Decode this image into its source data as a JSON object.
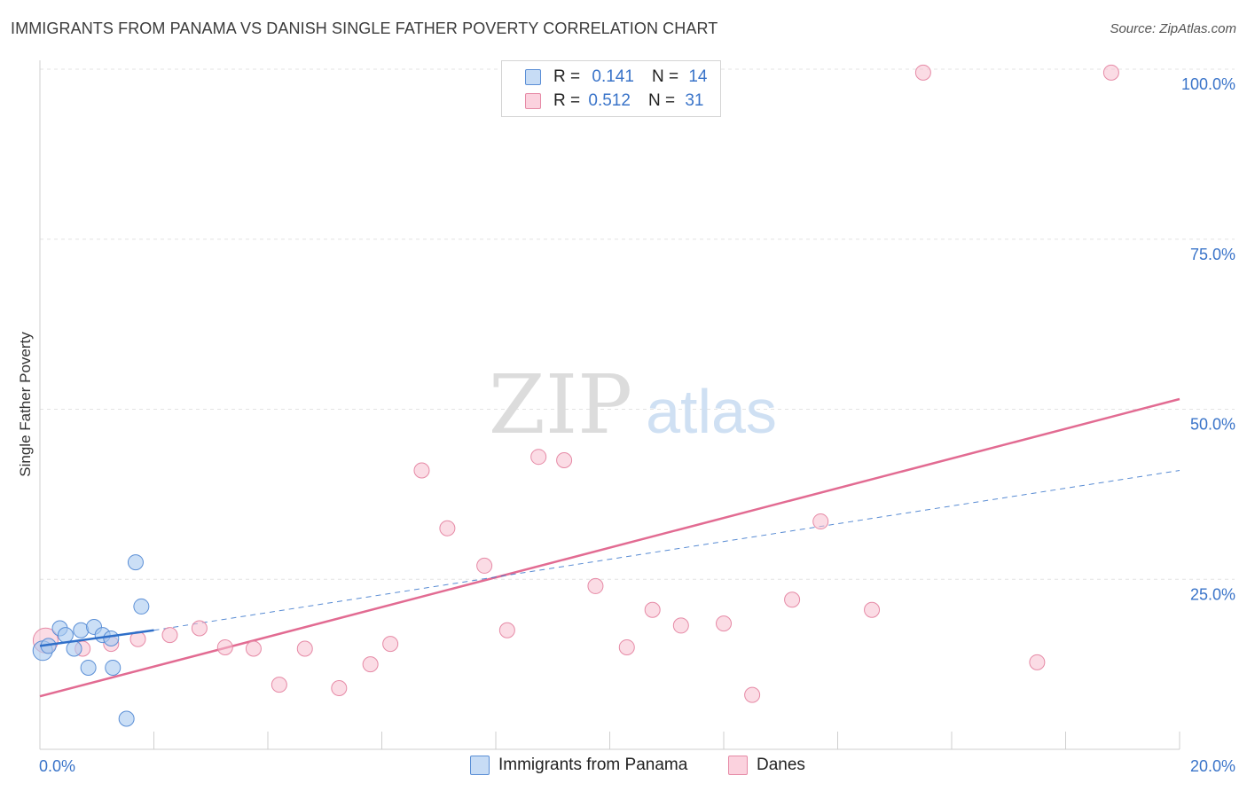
{
  "title": "IMMIGRANTS FROM PANAMA VS DANISH SINGLE FATHER POVERTY CORRELATION CHART",
  "source": "Source: ZipAtlas.com",
  "watermark": {
    "zip": "ZIP",
    "atlas": "atlas"
  },
  "legend": {
    "rows": [
      {
        "r_label": "R =",
        "r_value": "0.141",
        "n_label": "N =",
        "n_value": "14"
      },
      {
        "r_label": "R =",
        "r_value": "0.512",
        "n_label": "N =",
        "n_value": "31"
      }
    ]
  },
  "bottom_legend": {
    "series1": "Immigrants from Panama",
    "series2": "Danes"
  },
  "colors": {
    "blue_fill": "#a9c9f0",
    "blue_stroke": "#5b8fd6",
    "blue_line": "#2f6fc9",
    "pink_fill": "#f8c0d0",
    "pink_stroke": "#e68aa6",
    "pink_line": "#e26b92",
    "axis_label": "#3a74c9",
    "grid": "#e3e3e3"
  },
  "chart_data": {
    "type": "scatter",
    "title": "IMMIGRANTS FROM PANAMA VS DANISH SINGLE FATHER POVERTY CORRELATION CHART",
    "xlabel": "",
    "ylabel": "Single Father Poverty",
    "xlim": [
      0,
      20
    ],
    "ylim": [
      0,
      100
    ],
    "x_tick_labels": [
      "0.0%",
      "20.0%"
    ],
    "y_tick_labels": [
      "25.0%",
      "50.0%",
      "75.0%",
      "100.0%"
    ],
    "y_ticks": [
      25,
      50,
      75,
      100
    ],
    "grid": true,
    "series": [
      {
        "name": "Immigrants from Panama",
        "points": [
          [
            0.05,
            14.5
          ],
          [
            0.15,
            15.2
          ],
          [
            0.35,
            17.8
          ],
          [
            0.45,
            16.8
          ],
          [
            0.6,
            14.8
          ],
          [
            0.72,
            17.5
          ],
          [
            0.85,
            12.0
          ],
          [
            0.95,
            18.0
          ],
          [
            1.1,
            16.8
          ],
          [
            1.25,
            16.3
          ],
          [
            1.28,
            12.0
          ],
          [
            1.52,
            4.5
          ],
          [
            1.68,
            27.5
          ],
          [
            1.78,
            21.0
          ]
        ],
        "trend": {
          "x": [
            0.0,
            2.0
          ],
          "y": [
            15.2,
            17.5
          ]
        },
        "trend_extended": {
          "x": [
            2.0,
            20.0
          ],
          "y": [
            17.5,
            41.0
          ]
        }
      },
      {
        "name": "Danes",
        "points": [
          [
            0.1,
            16.0
          ],
          [
            0.75,
            14.8
          ],
          [
            1.25,
            15.5
          ],
          [
            1.72,
            16.2
          ],
          [
            2.28,
            16.8
          ],
          [
            2.8,
            17.8
          ],
          [
            3.25,
            15.0
          ],
          [
            3.75,
            14.8
          ],
          [
            4.2,
            9.5
          ],
          [
            4.65,
            14.8
          ],
          [
            5.25,
            9.0
          ],
          [
            5.8,
            12.5
          ],
          [
            6.15,
            15.5
          ],
          [
            6.7,
            41.0
          ],
          [
            7.15,
            32.5
          ],
          [
            7.8,
            27.0
          ],
          [
            8.2,
            17.5
          ],
          [
            8.75,
            43.0
          ],
          [
            9.2,
            42.5
          ],
          [
            9.75,
            24.0
          ],
          [
            10.3,
            15.0
          ],
          [
            10.75,
            20.5
          ],
          [
            11.25,
            18.2
          ],
          [
            12.0,
            18.5
          ],
          [
            12.5,
            8.0
          ],
          [
            13.2,
            22.0
          ],
          [
            13.7,
            33.5
          ],
          [
            14.6,
            20.5
          ],
          [
            15.5,
            99.5
          ],
          [
            17.5,
            12.8
          ],
          [
            18.8,
            99.5
          ]
        ],
        "trend": {
          "x": [
            0.0,
            20.0
          ],
          "y": [
            7.8,
            51.5
          ]
        }
      }
    ]
  }
}
